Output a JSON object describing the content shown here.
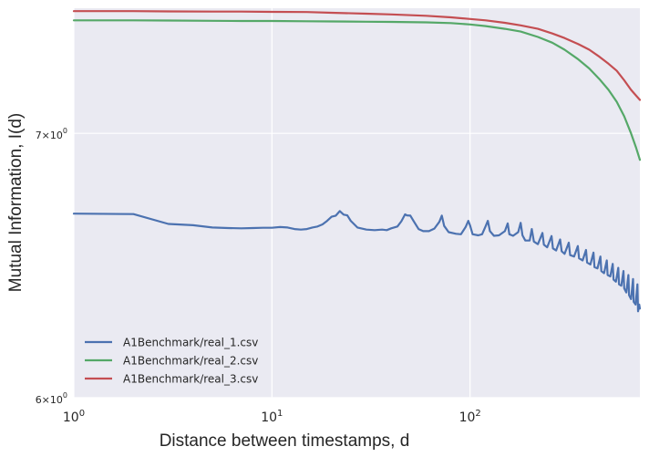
{
  "chart_data": {
    "type": "line",
    "xscale": "log",
    "yscale": "log",
    "xlabel": "Distance between timestamps, d",
    "ylabel": "Mutual Information, I(d)",
    "xlim": [
      1,
      720
    ],
    "ylim": [
      6.0,
      7.53
    ],
    "x_ticks": [
      {
        "value": 1,
        "base": "10",
        "exp": "0"
      },
      {
        "value": 10,
        "base": "10",
        "exp": "1"
      },
      {
        "value": 100,
        "base": "10",
        "exp": "2"
      }
    ],
    "y_ticks": [
      {
        "value": 6,
        "base": "6×10",
        "exp": "0"
      },
      {
        "value": 7,
        "base": "7×10",
        "exp": "0"
      }
    ],
    "grid": true,
    "legend_position": "lower-left",
    "series": [
      {
        "name": "A1Benchmark/real_1.csv",
        "color": "#4c72b0",
        "points": [
          [
            1,
            6.68
          ],
          [
            2,
            6.678
          ],
          [
            3,
            6.64
          ],
          [
            4,
            6.635
          ],
          [
            5,
            6.626
          ],
          [
            6,
            6.624
          ],
          [
            7,
            6.623
          ],
          [
            8,
            6.624
          ],
          [
            9,
            6.625
          ],
          [
            10,
            6.625
          ],
          [
            11,
            6.628
          ],
          [
            12,
            6.626
          ],
          [
            13,
            6.62
          ],
          [
            14,
            6.618
          ],
          [
            15,
            6.62
          ],
          [
            16,
            6.626
          ],
          [
            17,
            6.63
          ],
          [
            18,
            6.638
          ],
          [
            19,
            6.652
          ],
          [
            20,
            6.668
          ],
          [
            21,
            6.672
          ],
          [
            22,
            6.69
          ],
          [
            23,
            6.676
          ],
          [
            24,
            6.673
          ],
          [
            25,
            6.652
          ],
          [
            27,
            6.626
          ],
          [
            30,
            6.618
          ],
          [
            33,
            6.616
          ],
          [
            36,
            6.618
          ],
          [
            38,
            6.616
          ],
          [
            40,
            6.623
          ],
          [
            43,
            6.63
          ],
          [
            45,
            6.65
          ],
          [
            47,
            6.677
          ],
          [
            48,
            6.673
          ],
          [
            50,
            6.672
          ],
          [
            52,
            6.65
          ],
          [
            55,
            6.62
          ],
          [
            58,
            6.612
          ],
          [
            62,
            6.612
          ],
          [
            66,
            6.622
          ],
          [
            70,
            6.648
          ],
          [
            72,
            6.672
          ],
          [
            74,
            6.632
          ],
          [
            78,
            6.608
          ],
          [
            85,
            6.602
          ],
          [
            90,
            6.6
          ],
          [
            95,
            6.628
          ],
          [
            98,
            6.652
          ],
          [
            100,
            6.634
          ],
          [
            103,
            6.6
          ],
          [
            110,
            6.596
          ],
          [
            115,
            6.6
          ],
          [
            120,
            6.632
          ],
          [
            123,
            6.652
          ],
          [
            126,
            6.612
          ],
          [
            132,
            6.594
          ],
          [
            140,
            6.596
          ],
          [
            150,
            6.612
          ],
          [
            155,
            6.642
          ],
          [
            158,
            6.6
          ],
          [
            165,
            6.594
          ],
          [
            175,
            6.608
          ],
          [
            180,
            6.644
          ],
          [
            184,
            6.596
          ],
          [
            190,
            6.576
          ],
          [
            200,
            6.576
          ],
          [
            205,
            6.62
          ],
          [
            210,
            6.572
          ],
          [
            220,
            6.562
          ],
          [
            232,
            6.605
          ],
          [
            236,
            6.56
          ],
          [
            245,
            6.55
          ],
          [
            258,
            6.593
          ],
          [
            262,
            6.546
          ],
          [
            272,
            6.538
          ],
          [
            285,
            6.58
          ],
          [
            290,
            6.535
          ],
          [
            300,
            6.525
          ],
          [
            315,
            6.568
          ],
          [
            320,
            6.52
          ],
          [
            335,
            6.515
          ],
          [
            350,
            6.555
          ],
          [
            355,
            6.508
          ],
          [
            370,
            6.5
          ],
          [
            385,
            6.54
          ],
          [
            390,
            6.492
          ],
          [
            405,
            6.485
          ],
          [
            420,
            6.53
          ],
          [
            425,
            6.475
          ],
          [
            440,
            6.47
          ],
          [
            455,
            6.515
          ],
          [
            460,
            6.46
          ],
          [
            475,
            6.452
          ],
          [
            490,
            6.5
          ],
          [
            495,
            6.445
          ],
          [
            510,
            6.44
          ],
          [
            525,
            6.487
          ],
          [
            530,
            6.428
          ],
          [
            545,
            6.42
          ],
          [
            560,
            6.472
          ],
          [
            565,
            6.41
          ],
          [
            580,
            6.405
          ],
          [
            595,
            6.46
          ],
          [
            600,
            6.395
          ],
          [
            615,
            6.38
          ],
          [
            630,
            6.445
          ],
          [
            635,
            6.37
          ],
          [
            650,
            6.355
          ],
          [
            665,
            6.43
          ],
          [
            670,
            6.345
          ],
          [
            685,
            6.335
          ],
          [
            700,
            6.41
          ],
          [
            705,
            6.31
          ],
          [
            715,
            6.335
          ],
          [
            720,
            6.32
          ]
        ]
      },
      {
        "name": "A1Benchmark/real_2.csv",
        "color": "#55a868",
        "points": [
          [
            1,
            7.477
          ],
          [
            2,
            7.477
          ],
          [
            3,
            7.476
          ],
          [
            5,
            7.475
          ],
          [
            7,
            7.474
          ],
          [
            10,
            7.474
          ],
          [
            15,
            7.473
          ],
          [
            20,
            7.472
          ],
          [
            30,
            7.471
          ],
          [
            40,
            7.47
          ],
          [
            60,
            7.468
          ],
          [
            80,
            7.465
          ],
          [
            100,
            7.459
          ],
          [
            120,
            7.452
          ],
          [
            150,
            7.44
          ],
          [
            180,
            7.428
          ],
          [
            220,
            7.405
          ],
          [
            260,
            7.38
          ],
          [
            300,
            7.35
          ],
          [
            350,
            7.31
          ],
          [
            400,
            7.27
          ],
          [
            450,
            7.225
          ],
          [
            500,
            7.18
          ],
          [
            550,
            7.13
          ],
          [
            600,
            7.07
          ],
          [
            650,
            7.0
          ],
          [
            690,
            6.94
          ],
          [
            720,
            6.893
          ]
        ]
      },
      {
        "name": "A1Benchmark/real_3.csv",
        "color": "#c44e52",
        "points": [
          [
            1,
            7.517
          ],
          [
            2,
            7.517
          ],
          [
            3,
            7.516
          ],
          [
            5,
            7.515
          ],
          [
            7,
            7.515
          ],
          [
            10,
            7.514
          ],
          [
            15,
            7.513
          ],
          [
            20,
            7.51
          ],
          [
            30,
            7.506
          ],
          [
            40,
            7.503
          ],
          [
            60,
            7.497
          ],
          [
            80,
            7.49
          ],
          [
            100,
            7.483
          ],
          [
            120,
            7.477
          ],
          [
            150,
            7.466
          ],
          [
            180,
            7.455
          ],
          [
            220,
            7.44
          ],
          [
            260,
            7.42
          ],
          [
            300,
            7.4
          ],
          [
            350,
            7.375
          ],
          [
            400,
            7.35
          ],
          [
            450,
            7.32
          ],
          [
            500,
            7.29
          ],
          [
            550,
            7.26
          ],
          [
            600,
            7.22
          ],
          [
            650,
            7.18
          ],
          [
            690,
            7.155
          ],
          [
            720,
            7.138
          ]
        ]
      }
    ]
  }
}
